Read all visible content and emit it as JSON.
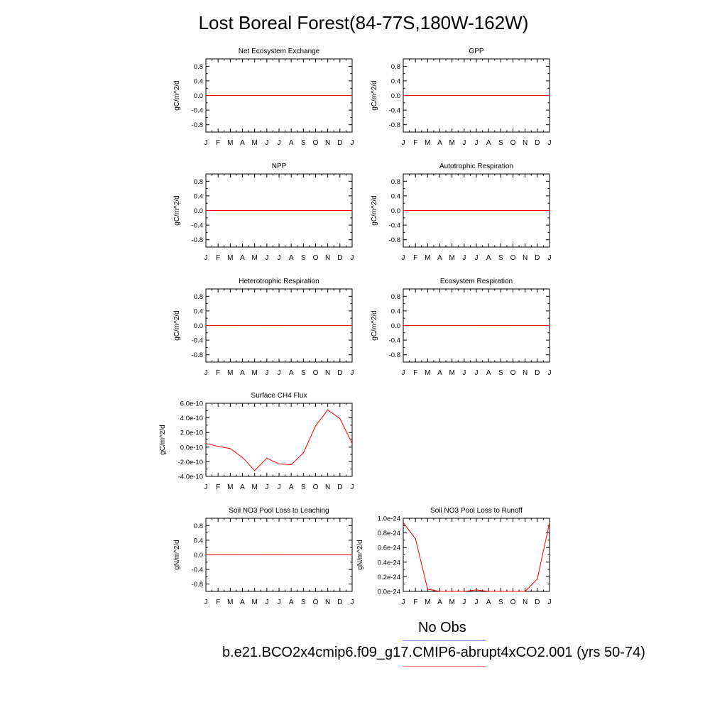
{
  "title": "Lost Boreal Forest(84-77S,180W-162W)",
  "legend": {
    "obs_label": "No Obs",
    "obs_color": "#8080ff",
    "model_label": "b.e21.BCO2x4cmip6.f09_g17.CMIP6-abrupt4xCO2.001 (yrs 50-74)",
    "model_color": "#ff8080"
  },
  "chart_data": [
    {
      "type": "line",
      "title": "Net Ecosystem Exchange",
      "ylabel": "gC/m^2/d",
      "ylim": [
        -1,
        1
      ],
      "yticks": [
        0.8,
        0.4,
        0.0,
        -0.4,
        -0.8
      ],
      "ytick_labels": [
        "0.8",
        "0.4",
        "0.0",
        "-0.4",
        "-0.8"
      ],
      "x": [
        "J",
        "F",
        "M",
        "A",
        "M",
        "J",
        "J",
        "A",
        "S",
        "O",
        "N",
        "D",
        "J"
      ],
      "series": [
        {
          "color": "#ff0000",
          "values": [
            0,
            0,
            0,
            0,
            0,
            0,
            0,
            0,
            0,
            0,
            0,
            0,
            0
          ]
        }
      ]
    },
    {
      "type": "line",
      "title": "GPP",
      "ylabel": "gC/m^2/d",
      "ylim": [
        -1,
        1
      ],
      "yticks": [
        0.8,
        0.4,
        0.0,
        -0.4,
        -0.8
      ],
      "ytick_labels": [
        "0.8",
        "0.4",
        "0.0",
        "-0.4",
        "-0.8"
      ],
      "x": [
        "J",
        "F",
        "M",
        "A",
        "M",
        "J",
        "J",
        "A",
        "S",
        "O",
        "N",
        "D",
        "J"
      ],
      "series": [
        {
          "color": "#ff0000",
          "values": [
            0,
            0,
            0,
            0,
            0,
            0,
            0,
            0,
            0,
            0,
            0,
            0,
            0
          ]
        }
      ]
    },
    {
      "type": "line",
      "title": "NPP",
      "ylabel": "gC/m^2/d",
      "ylim": [
        -1,
        1
      ],
      "yticks": [
        0.8,
        0.4,
        0.0,
        -0.4,
        -0.8
      ],
      "ytick_labels": [
        "0.8",
        "0.4",
        "0.0",
        "-0.4",
        "-0.8"
      ],
      "x": [
        "J",
        "F",
        "M",
        "A",
        "M",
        "J",
        "J",
        "A",
        "S",
        "O",
        "N",
        "D",
        "J"
      ],
      "series": [
        {
          "color": "#ff0000",
          "values": [
            0,
            0,
            0,
            0,
            0,
            0,
            0,
            0,
            0,
            0,
            0,
            0,
            0
          ]
        }
      ]
    },
    {
      "type": "line",
      "title": "Autotrophic Respiration",
      "ylabel": "gC/m^2/d",
      "ylim": [
        -1,
        1
      ],
      "yticks": [
        0.8,
        0.4,
        0.0,
        -0.4,
        -0.8
      ],
      "ytick_labels": [
        "0.8",
        "0.4",
        "0.0",
        "-0.4",
        "-0.8"
      ],
      "x": [
        "J",
        "F",
        "M",
        "A",
        "M",
        "J",
        "J",
        "A",
        "S",
        "O",
        "N",
        "D",
        "J"
      ],
      "series": [
        {
          "color": "#ff0000",
          "values": [
            0,
            0,
            0,
            0,
            0,
            0,
            0,
            0,
            0,
            0,
            0,
            0,
            0
          ]
        }
      ]
    },
    {
      "type": "line",
      "title": "Heterotrophic Respiration",
      "ylabel": "gC/m^2/d",
      "ylim": [
        -1,
        1
      ],
      "yticks": [
        0.8,
        0.4,
        0.0,
        -0.4,
        -0.8
      ],
      "ytick_labels": [
        "0.8",
        "0.4",
        "0.0",
        "-0.4",
        "-0.8"
      ],
      "x": [
        "J",
        "F",
        "M",
        "A",
        "M",
        "J",
        "J",
        "A",
        "S",
        "O",
        "N",
        "D",
        "J"
      ],
      "series": [
        {
          "color": "#ff0000",
          "values": [
            0,
            0,
            0,
            0,
            0,
            0,
            0,
            0,
            0,
            0,
            0,
            0,
            0
          ]
        }
      ]
    },
    {
      "type": "line",
      "title": "Ecosystem Respiration",
      "ylabel": "gC/m^2/d",
      "ylim": [
        -1,
        1
      ],
      "yticks": [
        0.8,
        0.4,
        0.0,
        -0.4,
        -0.8
      ],
      "ytick_labels": [
        "0.8",
        "0.4",
        "0.0",
        "-0.4",
        "-0.8"
      ],
      "x": [
        "J",
        "F",
        "M",
        "A",
        "M",
        "J",
        "J",
        "A",
        "S",
        "O",
        "N",
        "D",
        "J"
      ],
      "series": [
        {
          "color": "#ff0000",
          "values": [
            0,
            0,
            0,
            0,
            0,
            0,
            0,
            0,
            0,
            0,
            0,
            0,
            0
          ]
        }
      ]
    },
    {
      "type": "line",
      "title": "Surface CH4 Flux",
      "ylabel": "gC/m^2/d",
      "ylim": [
        -4e-10,
        6e-10
      ],
      "yticks": [
        6e-10,
        4e-10,
        2e-10,
        0,
        -2e-10,
        -4e-10
      ],
      "ytick_labels": [
        "6.0e-10",
        "4.0e-10",
        "2.0e-10",
        "0.0e-10",
        "-2.0e-10",
        "-4.0e-10"
      ],
      "x": [
        "J",
        "F",
        "M",
        "A",
        "M",
        "J",
        "J",
        "A",
        "S",
        "O",
        "N",
        "D",
        "J"
      ],
      "series": [
        {
          "color": "#ff0000",
          "values": [
            5e-11,
            1e-11,
            -2e-11,
            -1.4e-10,
            -3.2e-10,
            -1.5e-10,
            -2.3e-10,
            -2.4e-10,
            -8e-11,
            2.9e-10,
            5.1e-10,
            3.9e-10,
            5e-11
          ]
        }
      ]
    },
    {
      "type": "line",
      "title": "Soil NO3 Pool Loss to Leaching",
      "ylabel": "gN/m^2/d",
      "ylim": [
        -1,
        1
      ],
      "yticks": [
        0.8,
        0.4,
        0.0,
        -0.4,
        -0.8
      ],
      "ytick_labels": [
        "0.8",
        "0.4",
        "0.0",
        "-0.4",
        "-0.8"
      ],
      "x": [
        "J",
        "F",
        "M",
        "A",
        "M",
        "J",
        "J",
        "A",
        "S",
        "O",
        "N",
        "D",
        "J"
      ],
      "series": [
        {
          "color": "#ff0000",
          "values": [
            0,
            0,
            0,
            0,
            0,
            0,
            0,
            0,
            0,
            0,
            0,
            0,
            0
          ]
        }
      ]
    },
    {
      "type": "line",
      "title": "Soil NO3 Pool Loss to Runoff",
      "ylabel": "gN/m^2/d",
      "ylim": [
        0,
        1e-24
      ],
      "yticks": [
        1e-24,
        8e-25,
        6e-25,
        4e-25,
        2e-25,
        0
      ],
      "ytick_labels": [
        "1.0e-24",
        "0.8e-24",
        "0.6e-24",
        "0.4e-24",
        "0.2e-24",
        "0.0e-24"
      ],
      "x": [
        "J",
        "F",
        "M",
        "A",
        "M",
        "J",
        "J",
        "A",
        "S",
        "O",
        "N",
        "D",
        "J"
      ],
      "series": [
        {
          "color": "#ff0000",
          "values": [
            9.4e-25,
            7.2e-25,
            3e-26,
            0,
            0,
            0,
            2e-26,
            0,
            0,
            0,
            0,
            1.7e-25,
            9.4e-25
          ]
        }
      ]
    }
  ]
}
